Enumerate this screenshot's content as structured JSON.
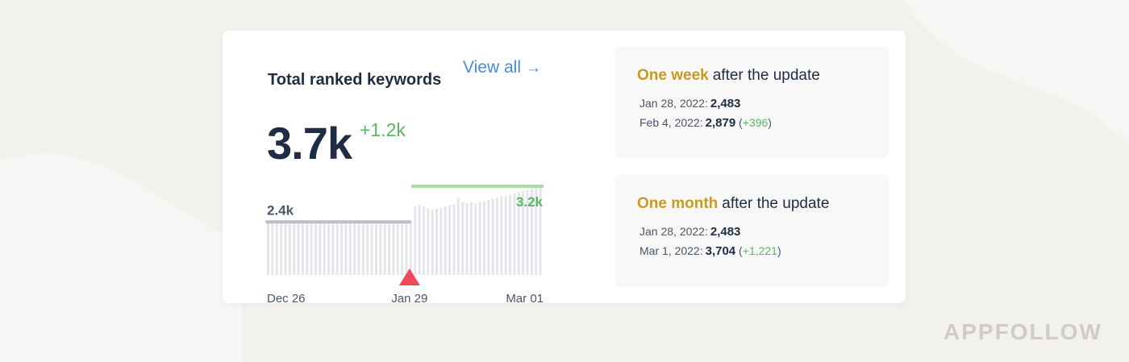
{
  "card": {
    "title": "Total ranked keywords",
    "view_all": {
      "label": "View all",
      "arrow": "→"
    },
    "total": "3.7k",
    "total_change": "+1.2k"
  },
  "chart_data": {
    "type": "bar",
    "x_ticks": [
      "Dec 26",
      "Jan 29",
      "Mar 01"
    ],
    "marker_at": "Jan 29",
    "before_label": "2.4k",
    "after_label": "3.2k",
    "before_avg": 2.4,
    "after_avg": 3.2,
    "ylim": [
      0,
      4.2
    ],
    "values": [
      2.35,
      2.38,
      2.4,
      2.38,
      2.42,
      2.4,
      2.36,
      2.4,
      2.42,
      2.38,
      2.4,
      2.44,
      2.4,
      2.38,
      2.42,
      2.46,
      2.4,
      2.38,
      2.42,
      2.4,
      2.44,
      2.4,
      2.38,
      2.42,
      2.4,
      2.38,
      2.42,
      2.44,
      2.4,
      2.42,
      2.4,
      2.38,
      2.46,
      2.42,
      3.1,
      3.15,
      3.1,
      3.0,
      2.95,
      3.0,
      3.05,
      3.1,
      3.15,
      3.2,
      3.5,
      3.3,
      3.25,
      3.3,
      3.25,
      3.3,
      3.35,
      3.4,
      3.45,
      3.5,
      3.55,
      3.6,
      3.65,
      3.7,
      3.75,
      3.8,
      3.85,
      3.9,
      3.95,
      4.05
    ],
    "marker_index": 33,
    "colors": {
      "before_bar": "#e2e5ea",
      "after_bar": "#e2e5ea",
      "before_avg": "#b9bec7",
      "after_avg": "#a8dba5",
      "marker": "#f04a5a",
      "after_label": "#59b860",
      "before_label": "#4a5568"
    }
  },
  "panels": [
    {
      "id": "week",
      "highlight": "One week",
      "heading_rest": "after the update",
      "lines": [
        {
          "label": "Jan 28, 2022:",
          "value": "2,483",
          "change": ""
        },
        {
          "label": "Feb 4, 2022:",
          "value": "2,879",
          "change": "+396"
        }
      ]
    },
    {
      "id": "month",
      "highlight": "One month",
      "heading_rest": "after the update",
      "lines": [
        {
          "label": "Jan 28, 2022:",
          "value": "2,483",
          "change": ""
        },
        {
          "label": "Mar 1, 2022:",
          "value": "3,704",
          "change": "+1,221"
        }
      ]
    }
  ],
  "brand": "APPFOLLOW"
}
